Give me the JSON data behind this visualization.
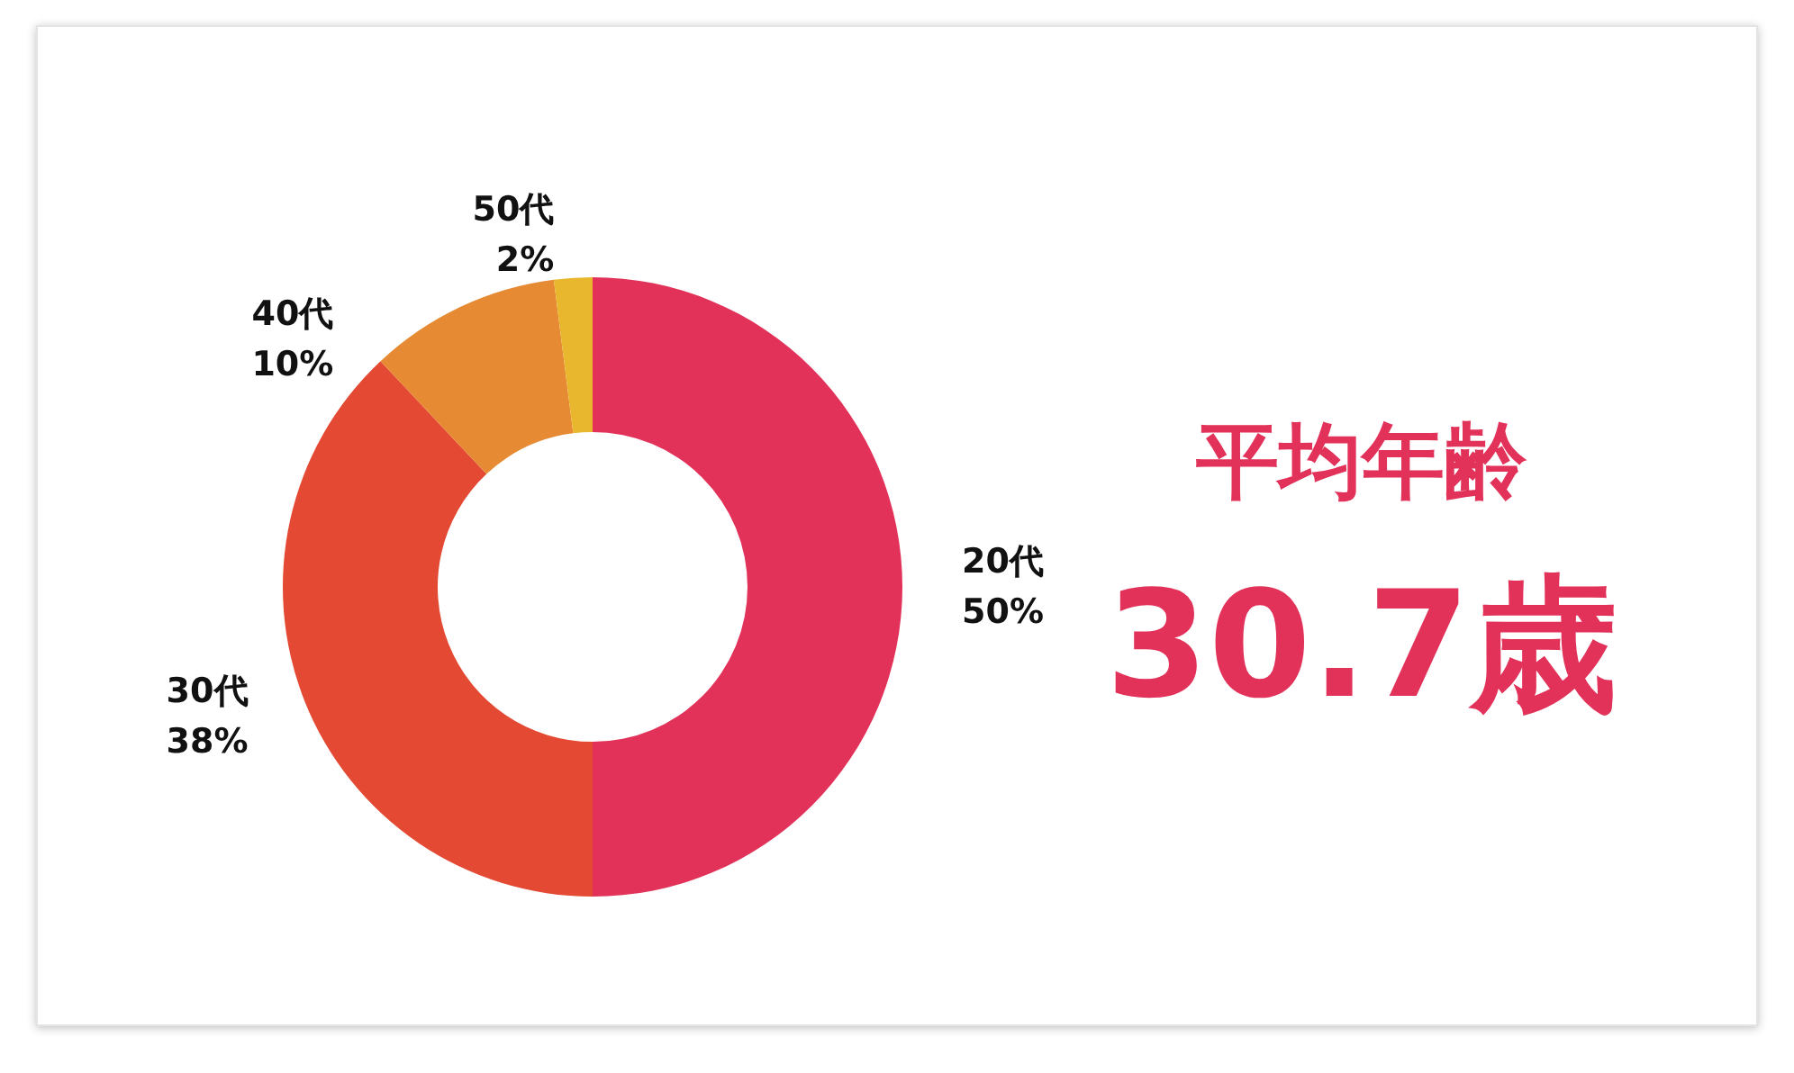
{
  "chart_data": {
    "type": "donut",
    "categories": [
      "20代",
      "30代",
      "40代",
      "50代"
    ],
    "values": [
      50,
      38,
      10,
      2
    ],
    "value_labels": [
      "50%",
      "38%",
      "10%",
      "2%"
    ],
    "colors": [
      "#e2325a",
      "#e44a33",
      "#e68a34",
      "#e9b72e"
    ],
    "annotations": [
      "平均年齢",
      "30.7歳"
    ],
    "legend": false
  }
}
